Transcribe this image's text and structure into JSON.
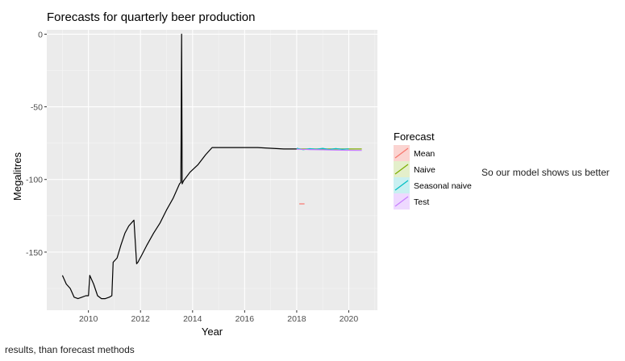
{
  "chart_data": {
    "type": "line",
    "title": "Forecasts for quarterly beer production",
    "xlabel": "Year",
    "ylabel": "Megalitres",
    "xlim": [
      2008.4,
      2021.1
    ],
    "ylim": [
      -190,
      3
    ],
    "x_ticks": [
      2010,
      2012,
      2014,
      2016,
      2018,
      2020
    ],
    "y_ticks": [
      0,
      -50,
      -100,
      -150
    ],
    "grid": true,
    "background": "#ebebeb",
    "legend_title": "Forecast",
    "legend_position": "right",
    "history": {
      "x": [
        2009.0,
        2009.15,
        2009.3,
        2009.45,
        2009.6,
        2009.75,
        2009.9,
        2010.0,
        2010.05,
        2010.2,
        2010.35,
        2010.5,
        2010.65,
        2010.8,
        2010.9,
        2010.95,
        2011.1,
        2011.25,
        2011.4,
        2011.55,
        2011.75,
        2011.85,
        2011.9,
        2012.05,
        2012.25,
        2012.5,
        2012.75,
        2013.0,
        2013.25,
        2013.5,
        2013.55,
        2013.58,
        2013.6,
        2013.65,
        2013.9,
        2014.2,
        2014.5,
        2014.75,
        2015.0,
        2015.5,
        2016.0,
        2016.5,
        2017.0,
        2017.5,
        2018.0
      ],
      "y": [
        -166,
        -172,
        -175,
        -181,
        -182,
        -181,
        -180,
        -180,
        -166,
        -172,
        -180,
        -182,
        -182,
        -181,
        -180,
        -157,
        -154,
        -145,
        -137,
        -132,
        -128,
        -158,
        -157,
        -152,
        -145,
        -137,
        -130,
        -121,
        -113,
        -103,
        -102,
        0,
        -103,
        -101,
        -95,
        -90,
        -83,
        -78,
        -78,
        -78,
        -78,
        -78,
        -78.5,
        -79,
        -79
      ]
    },
    "series": [
      {
        "name": "Mean",
        "color": "#f8766d",
        "x": [
          2018.1,
          2018.3
        ],
        "values": [
          -116.8,
          -116.8
        ]
      },
      {
        "name": "Naive",
        "color": "#7cae00",
        "x": [
          2018.0,
          2019.0,
          2020.0,
          2020.5
        ],
        "values": [
          -79,
          -79,
          -79,
          -79
        ]
      },
      {
        "name": "Seasonal naive",
        "color": "#00bfc4",
        "x": [
          2018.0,
          2018.25,
          2018.5,
          2018.75,
          2019.0,
          2019.25,
          2019.5,
          2019.75,
          2020.0
        ],
        "values": [
          -78.5,
          -79.5,
          -78.8,
          -79.2,
          -78.6,
          -79.4,
          -78.7,
          -79.3,
          -78.9
        ]
      },
      {
        "name": "Test",
        "color": "#c77cff",
        "x": [
          2018.0,
          2018.5,
          2019.0,
          2019.5,
          2020.0,
          2020.5
        ],
        "values": [
          -79.2,
          -79.4,
          -79.6,
          -79.8,
          -79.9,
          -80
        ]
      }
    ]
  },
  "notes": {
    "side": "So our model shows us better",
    "bottom": "results, than forecast methods"
  }
}
